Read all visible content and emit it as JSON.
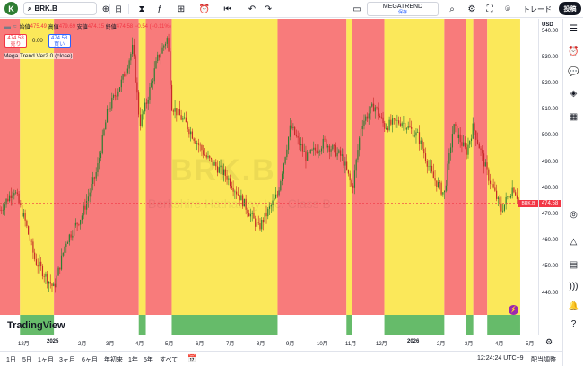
{
  "topbar": {
    "avatar_letter": "K",
    "symbol": "BRK.B",
    "timeframe": "日",
    "layout_name": "MEGATREND",
    "layout_status": "保存",
    "trade_label": "トレード",
    "post_label": "投稿"
  },
  "legend": {
    "open_label": "始値",
    "open": "475.49",
    "high_label": "高値",
    "high": "479.69",
    "low_label": "安値",
    "low": "474.15",
    "close_label": "終値",
    "close": "474.58",
    "change": "−0.54 (−0.11%)",
    "sell_price": "474.58",
    "sell_label": "売り",
    "spread": "0.00",
    "buy_price": "474.58",
    "buy_label": "買い",
    "indicator": "Mega Trend Ver2.0 (close)"
  },
  "watermark": {
    "ticker": "BRK.B",
    "name": "Berkshire Hathaway Inc. Class B"
  },
  "price_axis": {
    "currency": "USD",
    "ticks": [
      "540.00",
      "530.00",
      "520.00",
      "510.00",
      "500.00",
      "490.00",
      "480.00",
      "470.00",
      "460.00",
      "450.00",
      "440.00"
    ],
    "current_price": "474.58",
    "symbol_tag": "BRK.B"
  },
  "time_axis": {
    "labels": [
      "12月",
      "2025",
      "2月",
      "3月",
      "4月",
      "5月",
      "6月",
      "7月",
      "8月",
      "9月",
      "10月",
      "11月",
      "12月",
      "2026",
      "2月",
      "3月",
      "4月",
      "5月"
    ]
  },
  "bottom_bar": {
    "ranges": [
      "1日",
      "5日",
      "1ヶ月",
      "3ヶ月",
      "6ヶ月",
      "年初来",
      "1年",
      "5年",
      "すべて"
    ],
    "clock": "12:24:24 UTC+9",
    "adjust_label": "配当調整"
  },
  "tradingview_logo": "TradingView",
  "colors": {
    "bear_zone": "#f87b7b",
    "bull_zone": "#fbe85a",
    "candle_up": "#2e7d32",
    "candle_down": "#c62828",
    "accent": "#2962ff",
    "price_tag": "#f23645"
  },
  "chart_data": {
    "type": "candlestick",
    "ylim": [
      432,
      545
    ],
    "x_range": [
      "2024-11-15",
      "2026-05-08"
    ],
    "last_close": 474.58,
    "zones": [
      {
        "from": "2024-11-15",
        "to": "2024-12-05",
        "trend": "bear"
      },
      {
        "from": "2024-12-05",
        "to": "2025-01-08",
        "trend": "bull"
      },
      {
        "from": "2025-01-08",
        "to": "2025-04-03",
        "trend": "bear"
      },
      {
        "from": "2025-04-03",
        "to": "2025-04-10",
        "trend": "bull"
      },
      {
        "from": "2025-04-10",
        "to": "2025-05-06",
        "trend": "bear"
      },
      {
        "from": "2025-05-06",
        "to": "2025-08-20",
        "trend": "bull"
      },
      {
        "from": "2025-08-20",
        "to": "2025-10-28",
        "trend": "bear"
      },
      {
        "from": "2025-10-28",
        "to": "2025-11-03",
        "trend": "bull"
      },
      {
        "from": "2025-11-03",
        "to": "2025-12-05",
        "trend": "bear"
      },
      {
        "from": "2025-12-05",
        "to": "2026-02-03",
        "trend": "bull"
      },
      {
        "from": "2026-02-03",
        "to": "2026-02-25",
        "trend": "bear"
      },
      {
        "from": "2026-02-25",
        "to": "2026-03-04",
        "trend": "bull"
      },
      {
        "from": "2026-03-04",
        "to": "2026-03-18",
        "trend": "bear"
      },
      {
        "from": "2026-03-18",
        "to": "2026-04-20",
        "trend": "bull"
      }
    ],
    "path": [
      [
        "2024-11-15",
        472
      ],
      [
        "2024-11-29",
        480
      ],
      [
        "2024-12-10",
        468
      ],
      [
        "2024-12-20",
        453
      ],
      [
        "2025-01-08",
        442
      ],
      [
        "2025-01-20",
        460
      ],
      [
        "2025-02-05",
        470
      ],
      [
        "2025-02-20",
        487
      ],
      [
        "2025-03-03",
        510
      ],
      [
        "2025-03-18",
        522
      ],
      [
        "2025-03-28",
        534
      ],
      [
        "2025-04-04",
        505
      ],
      [
        "2025-04-10",
        512
      ],
      [
        "2025-04-22",
        530
      ],
      [
        "2025-05-02",
        538
      ],
      [
        "2025-05-06",
        512
      ],
      [
        "2025-05-20",
        505
      ],
      [
        "2025-06-10",
        492
      ],
      [
        "2025-06-30",
        485
      ],
      [
        "2025-07-15",
        476
      ],
      [
        "2025-08-01",
        465
      ],
      [
        "2025-08-20",
        478
      ],
      [
        "2025-09-02",
        504
      ],
      [
        "2025-09-18",
        492
      ],
      [
        "2025-10-06",
        498
      ],
      [
        "2025-10-24",
        492
      ],
      [
        "2025-11-03",
        480
      ],
      [
        "2025-11-12",
        505
      ],
      [
        "2025-11-25",
        512
      ],
      [
        "2025-12-05",
        504
      ],
      [
        "2025-12-22",
        506
      ],
      [
        "2026-01-08",
        500
      ],
      [
        "2026-01-22",
        485
      ],
      [
        "2026-02-03",
        478
      ],
      [
        "2026-02-12",
        504
      ],
      [
        "2026-02-25",
        494
      ],
      [
        "2026-03-04",
        504
      ],
      [
        "2026-03-18",
        486
      ],
      [
        "2026-04-01",
        472
      ],
      [
        "2026-04-13",
        481
      ],
      [
        "2026-04-20",
        474.58
      ]
    ]
  }
}
